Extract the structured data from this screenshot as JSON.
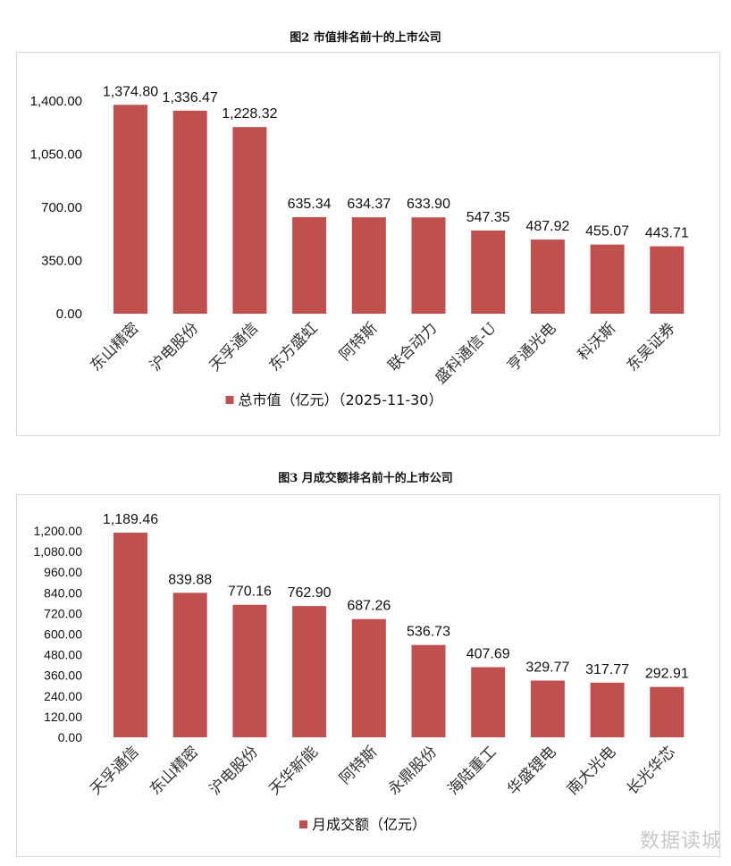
{
  "chart_data": [
    {
      "type": "bar",
      "title": "图2 市值排名前十的上市公司",
      "categories": [
        "东山精密",
        "沪电股份",
        "天孚通信",
        "东方盛虹",
        "阿特斯",
        "联合动力",
        "盛科通信-U",
        "亨通光电",
        "科沃斯",
        "东吴证券"
      ],
      "series": [
        {
          "name": "总市值（亿元）（2025-11-30）",
          "values": [
            1374.8,
            1336.47,
            1228.32,
            635.34,
            634.37,
            633.9,
            547.35,
            487.92,
            455.07,
            443.71
          ],
          "color": "#c0504d"
        }
      ],
      "yticks": [
        "0.00",
        "350.00",
        "700.00",
        "1,050.00",
        "1,400.00"
      ],
      "ylim": [
        0,
        1400
      ],
      "data_labels": [
        "1,374.80",
        "1,336.47",
        "1,228.32",
        "635.34",
        "634.37",
        "633.90",
        "547.35",
        "487.92",
        "455.07",
        "443.71"
      ],
      "grid": false,
      "legend": "bottom"
    },
    {
      "type": "bar",
      "title": "图3 月成交额排名前十的上市公司",
      "categories": [
        "天孚通信",
        "东山精密",
        "沪电股份",
        "天华新能",
        "阿特斯",
        "永鼎股份",
        "海陆重工",
        "华盛锂电",
        "南大光电",
        "长光华芯"
      ],
      "series": [
        {
          "name": "月成交额（亿元）",
          "values": [
            1189.46,
            839.88,
            770.16,
            762.9,
            687.26,
            536.73,
            407.69,
            329.77,
            317.77,
            292.91
          ],
          "color": "#c0504d"
        }
      ],
      "yticks": [
        "0.00",
        "120.00",
        "240.00",
        "360.00",
        "480.00",
        "600.00",
        "720.00",
        "840.00",
        "960.00",
        "1,080.00",
        "1,200.00"
      ],
      "ylim": [
        0,
        1200
      ],
      "data_labels": [
        "1,189.46",
        "839.88",
        "770.16",
        "762.90",
        "687.26",
        "536.73",
        "407.69",
        "329.77",
        "317.77",
        "292.91"
      ],
      "grid": false,
      "legend": "bottom"
    }
  ],
  "watermark": "数据读城"
}
